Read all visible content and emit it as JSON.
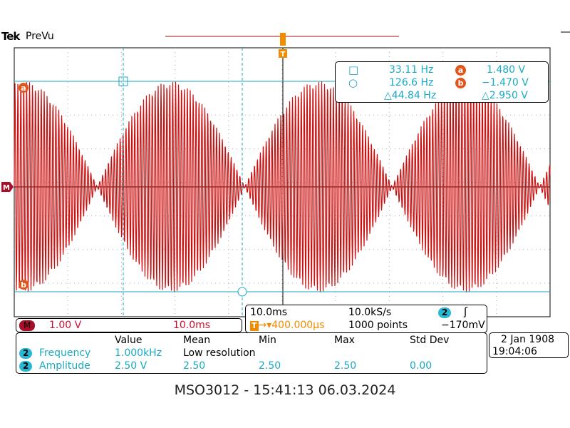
{
  "header": {
    "brand": "Tek",
    "mode": "PreVu"
  },
  "colors": {
    "waveform": "#cc1010",
    "cursor": "#1aa9c4",
    "trigger": "#f08c00",
    "grid": "#aaaaaa"
  },
  "markers": {
    "ref_a": "a",
    "ref_b": "b",
    "ground": "M",
    "trigger": "T"
  },
  "cursor_readout": {
    "vbar1_icon": "square-icon",
    "vbar1_freq": "33.11 Hz",
    "vbar2_icon": "circle-icon",
    "vbar2_freq": "126.6 Hz",
    "delta_freq": "△44.84 Hz",
    "a_label": "a",
    "a_value": "1.480 V",
    "b_label": "b",
    "b_value": "−1.470 V",
    "delta_volt": "△2.950 V"
  },
  "channel": {
    "label": "M",
    "scale": "1.00 V",
    "time": "10.0ms"
  },
  "timebase": {
    "scale": "10.0ms",
    "sample_rate": "10.0kS/s",
    "trigger_channel": "2",
    "trigger_delay": "▾400.000μs",
    "record_length": "1000 points",
    "trigger_level": "−170mV"
  },
  "measurements": {
    "headers": [
      "Value",
      "Mean",
      "Min",
      "Max",
      "Std Dev"
    ],
    "rows": [
      {
        "channel": "2",
        "name": "Frequency",
        "value": "1.000kHz",
        "mean": "Low resolution",
        "min": "",
        "max": "",
        "std": ""
      },
      {
        "channel": "2",
        "name": "Amplitude",
        "value": "2.50 V",
        "mean": "2.50",
        "min": "2.50",
        "max": "2.50",
        "std": "0.00"
      }
    ]
  },
  "datetime": {
    "date": "2 Jan  1908",
    "time": "19:04:06"
  },
  "footer": "MSO3012 - 15:41:13   06.03.2024"
}
